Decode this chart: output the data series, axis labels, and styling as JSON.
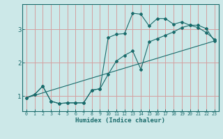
{
  "xlabel": "Humidex (Indice chaleur)",
  "bg_color": "#cce8e8",
  "grid_color": "#d4a0a0",
  "line_color": "#1a6b6b",
  "xlim": [
    -0.5,
    23.5
  ],
  "ylim": [
    0.55,
    3.75
  ],
  "yticks": [
    1,
    2,
    3
  ],
  "xticks": [
    0,
    1,
    2,
    3,
    4,
    5,
    6,
    7,
    8,
    9,
    10,
    11,
    12,
    13,
    14,
    15,
    16,
    17,
    18,
    19,
    20,
    21,
    22,
    23
  ],
  "curve1_x": [
    0,
    1,
    2,
    3,
    4,
    5,
    6,
    7,
    8,
    9,
    10,
    11,
    12,
    13,
    14,
    15,
    16,
    17,
    18,
    19,
    20,
    21,
    22,
    23
  ],
  "curve1_y": [
    0.95,
    1.05,
    1.3,
    0.85,
    0.78,
    0.8,
    0.8,
    0.8,
    1.18,
    1.22,
    2.75,
    2.85,
    2.87,
    3.48,
    3.45,
    3.1,
    3.32,
    3.32,
    3.15,
    3.22,
    3.12,
    3.05,
    2.9,
    2.7
  ],
  "curve2_x": [
    0,
    1,
    2,
    3,
    4,
    5,
    6,
    7,
    8,
    9,
    10,
    11,
    12,
    13,
    14,
    15,
    16,
    17,
    18,
    19,
    20,
    21,
    22,
    23
  ],
  "curve2_y": [
    0.95,
    1.05,
    1.3,
    0.85,
    0.78,
    0.8,
    0.8,
    0.8,
    1.18,
    1.22,
    1.65,
    2.05,
    2.22,
    2.35,
    1.8,
    2.62,
    2.72,
    2.82,
    2.92,
    3.05,
    3.12,
    3.12,
    3.02,
    2.65
  ],
  "line_x": [
    0,
    23
  ],
  "line_y": [
    0.95,
    2.65
  ]
}
